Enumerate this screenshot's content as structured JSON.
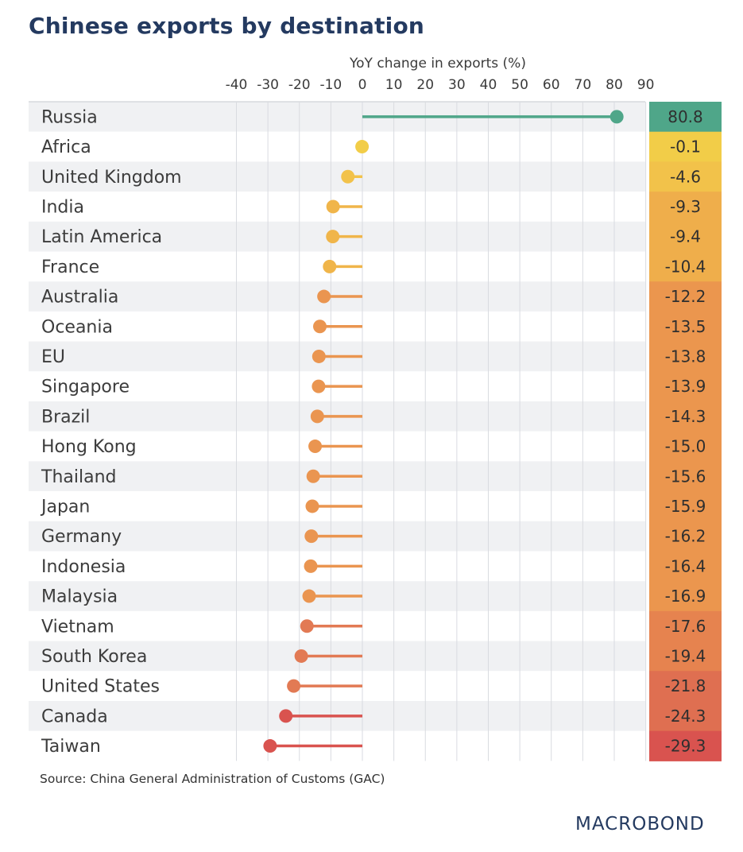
{
  "title": "Chinese exports by destination",
  "source": "Source: China General Administration of Customs (GAC)",
  "logo": "MACROBOND",
  "chart_data": {
    "type": "bar",
    "subtype": "lollipop",
    "title": "Chinese exports by destination",
    "xlabel": "YoY change in exports (%)",
    "xlim": [
      -40,
      90
    ],
    "xticks": [
      -40,
      -30,
      -20,
      -10,
      0,
      10,
      20,
      30,
      40,
      50,
      60,
      70,
      80,
      90
    ],
    "xtick_labels": [
      "-40",
      "-30",
      "-20",
      "-10",
      "0",
      "10",
      "20",
      "30",
      "40",
      "50",
      "60",
      "70",
      "80",
      "90"
    ],
    "grid": true,
    "categories": [
      "Russia",
      "Africa",
      "United Kingdom",
      "India",
      "Latin America",
      "France",
      "Australia",
      "Oceania",
      "EU",
      "Singapore",
      "Brazil",
      "Hong Kong",
      "Thailand",
      "Japan",
      "Germany",
      "Indonesia",
      "Malaysia",
      "Vietnam",
      "South Korea",
      "United States",
      "Canada",
      "Taiwan"
    ],
    "values": [
      80.8,
      -0.1,
      -4.6,
      -9.3,
      -9.4,
      -10.4,
      -12.2,
      -13.5,
      -13.8,
      -13.9,
      -14.3,
      -15.0,
      -15.6,
      -15.9,
      -16.2,
      -16.4,
      -16.9,
      -17.6,
      -19.4,
      -21.8,
      -24.3,
      -29.3
    ],
    "value_labels": [
      "80.8",
      "-0.1",
      "-4.6",
      "-9.3",
      "-9.4",
      "-10.4",
      "-12.2",
      "-13.5",
      "-13.8",
      "-13.9",
      "-14.3",
      "-15.0",
      "-15.6",
      "-15.9",
      "-16.2",
      "-16.4",
      "-16.9",
      "-17.6",
      "-19.4",
      "-21.8",
      "-24.3",
      "-29.3"
    ],
    "colors": {
      "positive": "#4fa689",
      "zero": "#f2cd48",
      "neutral": "#f0b54a",
      "mid": "#ea9550",
      "low": "#e27a54",
      "lowest": "#d9534f",
      "row_alt": "#f0f1f3",
      "grid": "#d9dbe0"
    }
  }
}
